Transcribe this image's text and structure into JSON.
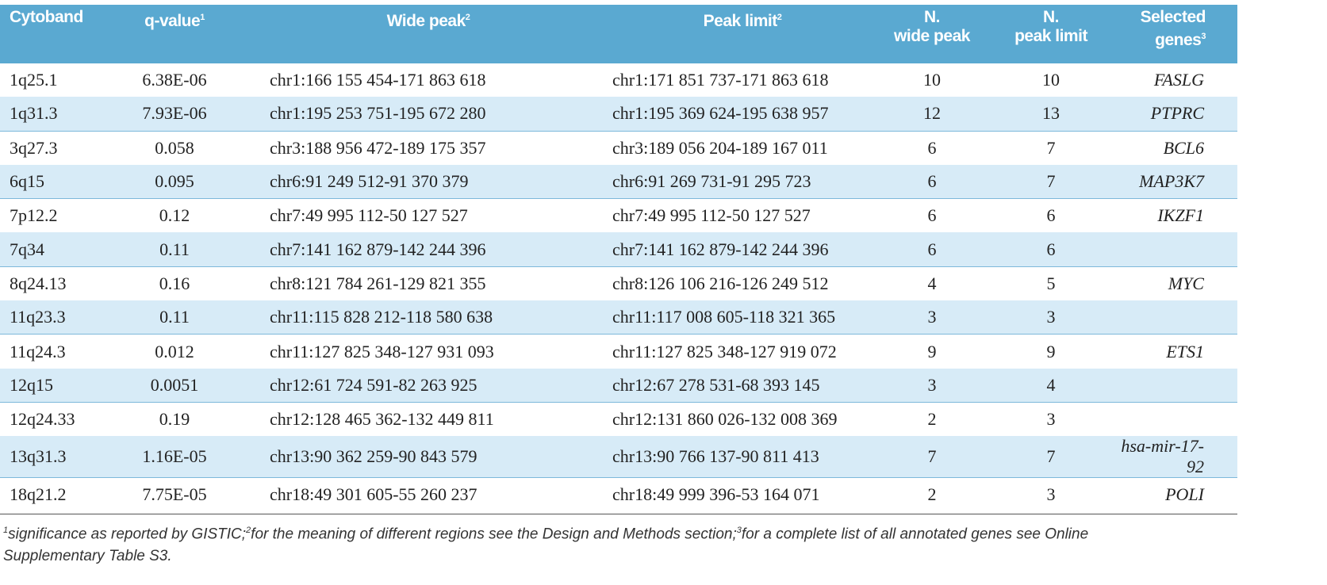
{
  "table": {
    "header": [
      {
        "lines": [
          "Cytoband"
        ]
      },
      {
        "lines": [
          "q-value"
        ],
        "italic_prefix": "q",
        "note": "1"
      },
      {
        "lines": [
          "Wide peak"
        ],
        "note": "2"
      },
      {
        "lines": [
          "Peak limit"
        ],
        "note": "2"
      },
      {
        "lines": [
          "N.",
          "wide peak"
        ]
      },
      {
        "lines": [
          "N.",
          "peak limit"
        ]
      },
      {
        "lines": [
          "Selected",
          "genes"
        ],
        "note": "3"
      }
    ],
    "rows": [
      [
        "1q25.1",
        "6.38E-06",
        "chr1:166 155 454-171 863 618",
        "chr1:171 851 737-171 863 618",
        "10",
        "10",
        "FASLG"
      ],
      [
        "1q31.3",
        "7.93E-06",
        "chr1:195 253 751-195 672 280",
        "chr1:195 369 624-195 638 957",
        "12",
        "13",
        "PTPRC"
      ],
      [
        "3q27.3",
        "0.058",
        "chr3:188 956 472-189 175 357",
        "chr3:189 056 204-189 167 011",
        "6",
        "7",
        "BCL6"
      ],
      [
        "6q15",
        "0.095",
        "chr6:91 249 512-91 370 379",
        "chr6:91 269 731-91 295 723",
        "6",
        "7",
        "MAP3K7"
      ],
      [
        "7p12.2",
        "0.12",
        "chr7:49 995 112-50 127 527",
        "chr7:49 995 112-50 127 527",
        "6",
        "6",
        "IKZF1"
      ],
      [
        "7q34",
        "0.11",
        "chr7:141 162 879-142 244 396",
        "chr7:141 162 879-142 244 396",
        "6",
        "6",
        null
      ],
      [
        "8q24.13",
        "0.16",
        "chr8:121 784 261-129 821 355",
        "chr8:126 106 216-126 249 512",
        "4",
        "5",
        "MYC"
      ],
      [
        "11q23.3",
        "0.11",
        "chr11:115 828 212-118 580 638",
        "chr11:117 008 605-118 321 365",
        "3",
        "3",
        null
      ],
      [
        "11q24.3",
        "0.012",
        "chr11:127 825 348-127 931 093",
        "chr11:127 825 348-127 919 072",
        "9",
        "9",
        "ETS1"
      ],
      [
        "12q15",
        "0.0051",
        "chr12:61 724 591-82 263 925",
        "chr12:67 278 531-68 393 145",
        "3",
        "4",
        null
      ],
      [
        "12q24.33",
        "0.19",
        "chr12:128 465 362-132 449 811",
        "chr12:131 860 026-132 008 369",
        "2",
        "3",
        null
      ],
      [
        "13q31.3",
        "1.16E-05",
        "chr13:90 362 259-90 843 579",
        "chr13:90 766 137-90 811 413",
        "7",
        "7",
        "hsa-mir-17-92"
      ],
      [
        "18q21.2",
        "7.75E-05",
        "chr18:49 301 605-55 260 237",
        "chr18:49 999 396-53 164 071",
        "2",
        "3",
        "POLI"
      ]
    ]
  },
  "footnotes": [
    {
      "mark": "1",
      "text": "significance as reported by GISTIC;"
    },
    {
      "mark": "2",
      "text": "for the meaning of different regions see the Design and Methods section;"
    },
    {
      "mark": "3",
      "text": "for a complete list of all annotated genes see Online Supplementary Table S3."
    }
  ]
}
